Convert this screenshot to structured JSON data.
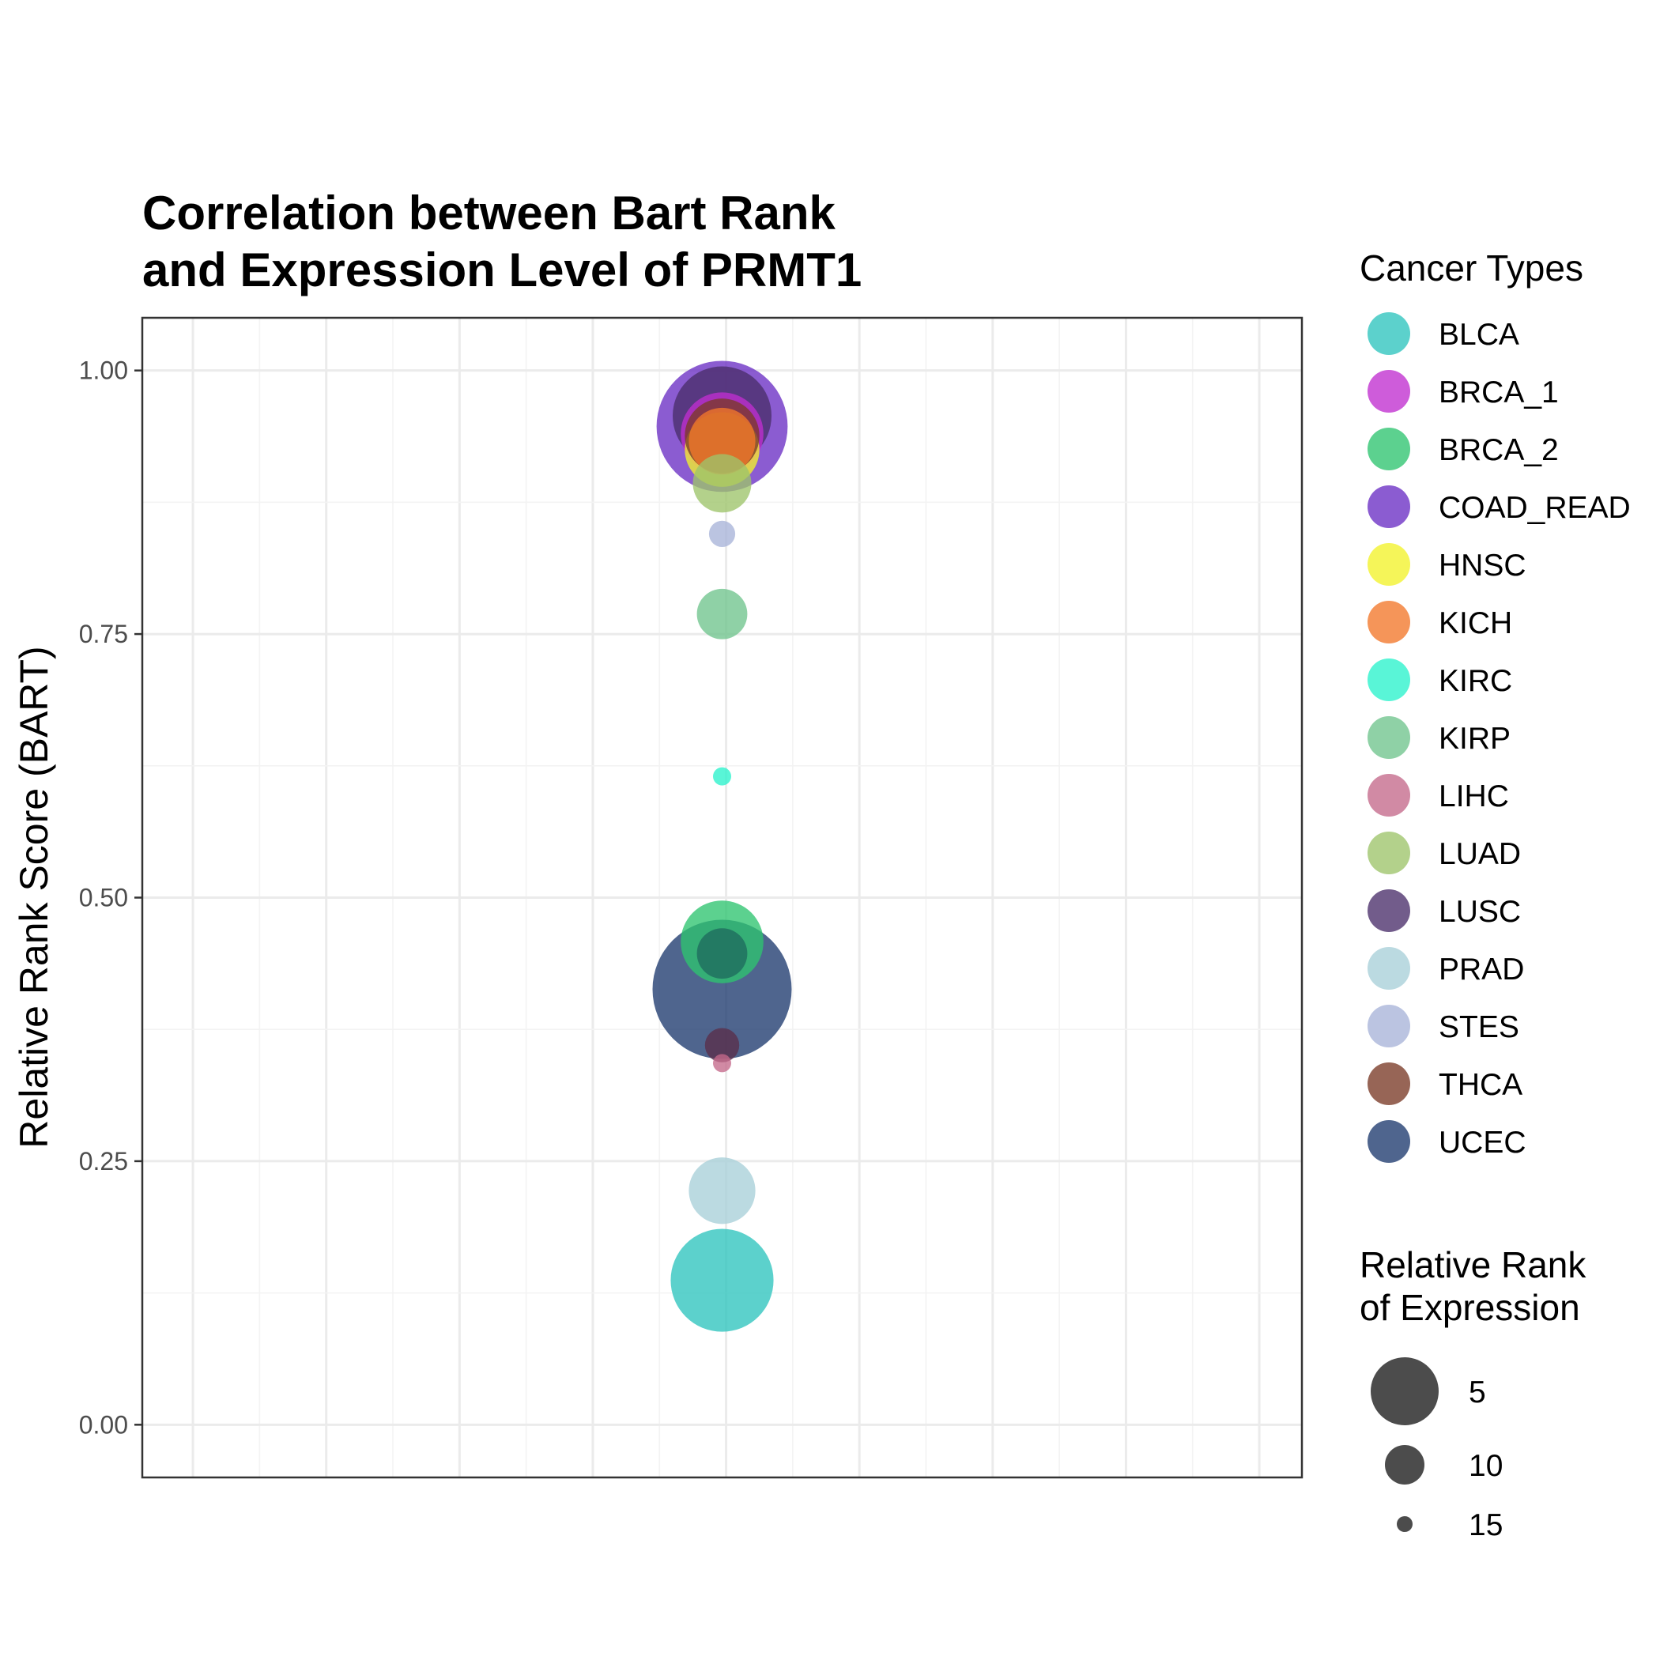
{
  "chart_data": {
    "type": "scatter",
    "title_lines": [
      "Correlation between Bart Rank",
      "and Expression Level of PRMT1"
    ],
    "xlabel": "",
    "ylabel": "Relative Rank Score (BART)",
    "ylim": [
      -0.05,
      1.05
    ],
    "yticks": [
      {
        "value": 0.0,
        "label": "0.00"
      },
      {
        "value": 0.25,
        "label": "0.25"
      },
      {
        "value": 0.5,
        "label": "0.50"
      },
      {
        "value": 0.75,
        "label": "0.75"
      },
      {
        "value": 1.0,
        "label": "1.00"
      }
    ],
    "grid": true,
    "color_legend": {
      "title": "Cancer Types",
      "placement": "right"
    },
    "size_legend": {
      "title_lines": [
        "Relative Rank",
        "of Expression"
      ],
      "placement": "right",
      "items": [
        {
          "label": "5",
          "value": 5
        },
        {
          "label": "10",
          "value": 10
        },
        {
          "label": "15",
          "value": 15
        }
      ]
    },
    "series": [
      {
        "name": "BLCA",
        "color": "#2ec4be",
        "y": 0.137,
        "expression_rank": 5.5
      },
      {
        "name": "BRCA_1",
        "color": "#c02ecf",
        "y": 0.94,
        "expression_rank": 8
      },
      {
        "name": "BRCA_2",
        "color": "#2ec46f",
        "y": 0.458,
        "expression_rank": 8
      },
      {
        "name": "COAD_READ",
        "color": "#6a2ec4",
        "y": 0.947,
        "expression_rank": 2
      },
      {
        "name": "HNSC",
        "color": "#f2f22a",
        "y": 0.925,
        "expression_rank": 9
      },
      {
        "name": "KICH",
        "color": "#f2772a",
        "y": 0.933,
        "expression_rank": 10
      },
      {
        "name": "KIRC",
        "color": "#2af2cc",
        "y": 0.615,
        "expression_rank": 16
      },
      {
        "name": "KIRP",
        "color": "#6fc48d",
        "y": 0.769,
        "expression_rank": 12
      },
      {
        "name": "LIHC",
        "color": "#c4698b",
        "y": 0.343,
        "expression_rank": 16
      },
      {
        "name": "LUAD",
        "color": "#9ec46a",
        "y": 0.893,
        "expression_rank": 11
      },
      {
        "name": "LUSC",
        "color": "#4a2e6a",
        "y": 0.957,
        "expression_rank": 6
      },
      {
        "name": "PRAD",
        "color": "#a8cfd8",
        "y": 0.222,
        "expression_rank": 10
      },
      {
        "name": "STES",
        "color": "#a8b4d8",
        "y": 0.845,
        "expression_rank": 15
      },
      {
        "name": "THCA",
        "color": "#7a3a26",
        "y": 0.938,
        "expression_rank": 9
      },
      {
        "name": "UCEC",
        "color": "#1d3a6e",
        "y": 0.413,
        "expression_rank": 1
      }
    ],
    "extra_points": [
      {
        "series": "BRCA_2",
        "color": "#1f6b5e",
        "y": 0.447,
        "expression_rank": 12
      },
      {
        "series": "LUSC",
        "color": "#5a2e4a",
        "y": 0.36,
        "expression_rank": 14
      }
    ]
  }
}
